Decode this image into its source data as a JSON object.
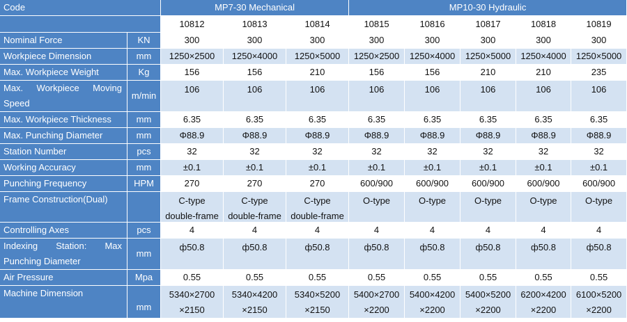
{
  "header": {
    "code_label": "Code",
    "group_mechanical": "MP7-30 Mechanical",
    "group_hydraulic": "MP10-30 Hydraulic",
    "models": [
      "10812",
      "10813",
      "10814",
      "10815",
      "10816",
      "10817",
      "10818",
      "10819"
    ]
  },
  "rows": [
    {
      "label": "Nominal Force",
      "unit": "KN",
      "values": [
        "300",
        "300",
        "300",
        "300",
        "300",
        "300",
        "300",
        "300"
      ]
    },
    {
      "label": "Workpiece Dimension",
      "unit": "mm",
      "values": [
        "1250×2500",
        "1250×4000",
        "1250×5000",
        "1250×2500",
        "1250×4000",
        "1250×5000",
        "1250×4000",
        "1250×5000"
      ]
    },
    {
      "label": "Max. Workpiece Weight",
      "unit": "Kg",
      "values": [
        "156",
        "156",
        "210",
        "156",
        "156",
        "210",
        "210",
        "235"
      ]
    },
    {
      "label_a": "Max.",
      "label_b": "Workpiece",
      "label_c": "Moving",
      "label_d": "Speed",
      "unit": "m/min",
      "values": [
        "106",
        "106",
        "106",
        "106",
        "106",
        "106",
        "106",
        "106"
      ]
    },
    {
      "label": "Max. Workpiece Thickness",
      "unit": "mm",
      "values": [
        "6.35",
        "6.35",
        "6.35",
        "6.35",
        "6.35",
        "6.35",
        "6.35",
        "6.35"
      ]
    },
    {
      "label": "Max. Punching Diameter",
      "unit": "mm",
      "values": [
        "Φ88.9",
        "Φ88.9",
        "Φ88.9",
        "Φ88.9",
        "Φ88.9",
        "Φ88.9",
        "Φ88.9",
        "Φ88.9"
      ]
    },
    {
      "label": "Station Number",
      "unit": "pcs",
      "values": [
        "32",
        "32",
        "32",
        "32",
        "32",
        "32",
        "32",
        "32"
      ]
    },
    {
      "label": "Working Accuracy",
      "unit": "mm",
      "values": [
        "±0.1",
        "±0.1",
        "±0.1",
        "±0.1",
        "±0.1",
        "±0.1",
        "±0.1",
        "±0.1"
      ]
    },
    {
      "label": "Punching Frequency",
      "unit": "HPM",
      "values": [
        "270",
        "270",
        "270",
        "600/900",
        "600/900",
        "600/900",
        "600/900",
        "600/900"
      ]
    },
    {
      "label": "Frame Construction(Dual)",
      "unit": "",
      "values_top": [
        "C-type",
        "C-type",
        "C-type",
        "O-type",
        "O-type",
        "O-type",
        "O-type",
        "O-type"
      ],
      "values_bottom": [
        "double-frame",
        "double-frame",
        "double-frame",
        "",
        "",
        "",
        "",
        ""
      ]
    },
    {
      "label": "Controlling Axes",
      "unit": "pcs",
      "values": [
        "4",
        "4",
        "4",
        "4",
        "4",
        "4",
        "4",
        "4"
      ]
    },
    {
      "label_a": "Indexing",
      "label_b": "Station:",
      "label_c": "Max",
      "label_d": "Punching Diameter",
      "unit": "mm",
      "values": [
        "ф50.8",
        "ф50.8",
        "ф50.8",
        "ф50.8",
        "ф50.8",
        "ф50.8",
        "ф50.8",
        "ф50.8"
      ]
    },
    {
      "label": "Air Pressure",
      "unit": "Mpa",
      "values": [
        "0.55",
        "0.55",
        "0.55",
        "0.55",
        "0.55",
        "0.55",
        "0.55",
        "0.55"
      ]
    },
    {
      "label": "Machine Dimension",
      "unit": "mm",
      "values_top": [
        "5340×2700",
        "5340×4200",
        "5340×5200",
        "5400×2700",
        "5400×4200",
        "5400×5200",
        "6200×4200",
        "6100×5200"
      ],
      "values_bottom": [
        "×2150",
        "×2150",
        "×2150",
        "×2200",
        "×2200",
        "×2200",
        "×2200",
        "×2200"
      ]
    }
  ],
  "colors": {
    "header_blue": "#4e84c4",
    "stripe": "#d4e2f2"
  }
}
